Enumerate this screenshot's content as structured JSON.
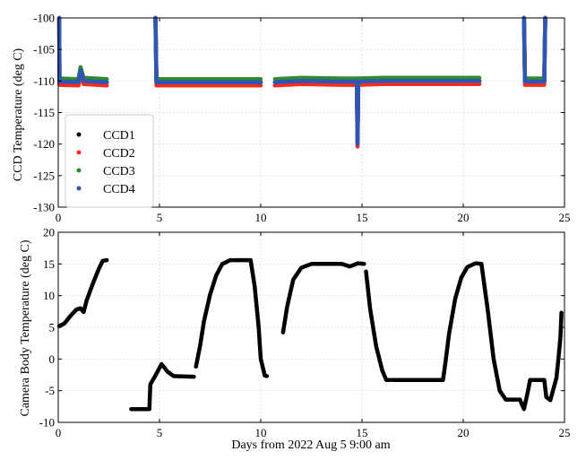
{
  "chart_data": [
    {
      "type": "scatter",
      "ylabel": "CCD Temperature (deg C)",
      "xlim": [
        0,
        25
      ],
      "ylim": [
        -130,
        -100
      ],
      "x_ticks": [
        "0",
        "5",
        "10",
        "15",
        "20",
        "25"
      ],
      "y_ticks": [
        "-100",
        "-105",
        "-110",
        "-115",
        "-120",
        "-125",
        "-130"
      ],
      "grid": true,
      "legend_position": "lower-left",
      "series": [
        {
          "name": "CCD1",
          "color": "#000000",
          "segments": [
            [
              [
                0.05,
                -100
              ],
              [
                0.06,
                -110.1
              ],
              [
                1.0,
                -110.2
              ],
              [
                1.1,
                -108.3
              ],
              [
                1.25,
                -110.0
              ],
              [
                2.4,
                -110.2
              ]
            ],
            [
              [
                4.8,
                -100
              ],
              [
                4.85,
                -110.2
              ],
              [
                10.0,
                -110.2
              ]
            ],
            [
              [
                10.7,
                -110.2
              ],
              [
                12.0,
                -110.0
              ],
              [
                14.0,
                -110.1
              ],
              [
                14.75,
                -110.1
              ],
              [
                14.78,
                -120.0
              ],
              [
                14.82,
                -110.1
              ],
              [
                16.0,
                -110.0
              ],
              [
                18.0,
                -110.0
              ],
              [
                20.8,
                -110.0
              ]
            ],
            [
              [
                23.0,
                -100
              ],
              [
                23.05,
                -110.1
              ],
              [
                24.0,
                -110.1
              ],
              [
                24.05,
                -100
              ]
            ]
          ]
        },
        {
          "name": "CCD2",
          "color": "#ff2a1a",
          "segments": [
            [
              [
                0.05,
                -100
              ],
              [
                0.06,
                -110.6
              ],
              [
                1.0,
                -110.7
              ],
              [
                1.1,
                -108.8
              ],
              [
                1.25,
                -110.5
              ],
              [
                2.4,
                -110.7
              ]
            ],
            [
              [
                4.8,
                -100
              ],
              [
                4.85,
                -110.7
              ],
              [
                10.0,
                -110.7
              ]
            ],
            [
              [
                10.7,
                -110.7
              ],
              [
                12.0,
                -110.5
              ],
              [
                14.0,
                -110.6
              ],
              [
                14.75,
                -110.6
              ],
              [
                14.78,
                -120.4
              ],
              [
                14.82,
                -110.6
              ],
              [
                16.0,
                -110.5
              ],
              [
                18.0,
                -110.5
              ],
              [
                20.8,
                -110.5
              ]
            ],
            [
              [
                23.0,
                -100
              ],
              [
                23.05,
                -110.6
              ],
              [
                24.0,
                -110.6
              ],
              [
                24.05,
                -100
              ]
            ]
          ]
        },
        {
          "name": "CCD3",
          "color": "#2e8b2e",
          "segments": [
            [
              [
                0.05,
                -100
              ],
              [
                0.06,
                -109.6
              ],
              [
                1.0,
                -109.7
              ],
              [
                1.1,
                -107.8
              ],
              [
                1.25,
                -109.5
              ],
              [
                2.4,
                -109.7
              ]
            ],
            [
              [
                4.8,
                -100
              ],
              [
                4.85,
                -109.7
              ],
              [
                10.0,
                -109.7
              ]
            ],
            [
              [
                10.7,
                -109.7
              ],
              [
                12.0,
                -109.5
              ],
              [
                14.0,
                -109.6
              ],
              [
                14.75,
                -109.6
              ],
              [
                14.78,
                -119.6
              ],
              [
                14.82,
                -109.6
              ],
              [
                16.0,
                -109.5
              ],
              [
                18.0,
                -109.5
              ],
              [
                20.8,
                -109.5
              ]
            ],
            [
              [
                23.0,
                -100
              ],
              [
                23.05,
                -109.6
              ],
              [
                24.0,
                -109.6
              ],
              [
                24.05,
                -100
              ]
            ]
          ]
        },
        {
          "name": "CCD4",
          "color": "#2f55b5",
          "segments": [
            [
              [
                0.05,
                -100
              ],
              [
                0.06,
                -110.1
              ],
              [
                1.0,
                -110.2
              ],
              [
                1.1,
                -108.3
              ],
              [
                1.25,
                -110.0
              ],
              [
                2.4,
                -110.2
              ]
            ],
            [
              [
                4.8,
                -100
              ],
              [
                4.85,
                -110.2
              ],
              [
                10.0,
                -110.2
              ]
            ],
            [
              [
                10.7,
                -110.2
              ],
              [
                12.0,
                -110.0
              ],
              [
                14.0,
                -110.1
              ],
              [
                14.75,
                -110.1
              ],
              [
                14.78,
                -120.0
              ],
              [
                14.82,
                -110.1
              ],
              [
                16.0,
                -110.0
              ],
              [
                18.0,
                -110.0
              ],
              [
                20.8,
                -110.0
              ]
            ],
            [
              [
                23.0,
                -100
              ],
              [
                23.05,
                -110.1
              ],
              [
                24.0,
                -110.1
              ],
              [
                24.05,
                -100
              ]
            ]
          ]
        }
      ]
    },
    {
      "type": "scatter",
      "xlabel": "Days from 2022 Aug 5 9:00 am",
      "ylabel": "Camera Body Temperature (deg C)",
      "xlim": [
        0,
        25
      ],
      "ylim": [
        -10,
        20
      ],
      "x_ticks": [
        "0",
        "5",
        "10",
        "15",
        "20",
        "25"
      ],
      "y_ticks": [
        "20",
        "15",
        "10",
        "5",
        "0",
        "-5",
        "-10"
      ],
      "grid": true,
      "series": [
        {
          "name": "",
          "color": "#000000",
          "segments": [
            [
              [
                0.05,
                5.2
              ],
              [
                0.3,
                5.6
              ],
              [
                0.6,
                6.8
              ],
              [
                0.9,
                7.8
              ],
              [
                1.1,
                8.0
              ],
              [
                1.25,
                7.4
              ],
              [
                1.4,
                9.2
              ],
              [
                1.7,
                11.8
              ],
              [
                2.0,
                14.2
              ],
              [
                2.2,
                15.5
              ],
              [
                2.4,
                15.6
              ]
            ],
            [
              [
                3.6,
                -7.9
              ],
              [
                4.5,
                -7.9
              ],
              [
                4.55,
                -4.0
              ],
              [
                4.8,
                -2.6
              ],
              [
                5.1,
                -0.8
              ],
              [
                5.4,
                -2.0
              ],
              [
                5.7,
                -2.7
              ],
              [
                6.7,
                -2.8
              ]
            ],
            [
              [
                6.8,
                -1.2
              ],
              [
                7.0,
                2.0
              ],
              [
                7.2,
                6.0
              ],
              [
                7.5,
                10.2
              ],
              [
                7.8,
                13.2
              ],
              [
                8.1,
                15.0
              ],
              [
                8.5,
                15.6
              ],
              [
                9.5,
                15.6
              ]
            ],
            [
              [
                9.5,
                15.6
              ],
              [
                9.7,
                11.5
              ],
              [
                9.9,
                5.0
              ],
              [
                10.0,
                0.0
              ],
              [
                10.2,
                -2.6
              ],
              [
                10.3,
                -2.7
              ]
            ],
            [
              [
                11.1,
                4.2
              ],
              [
                11.3,
                8.2
              ],
              [
                11.6,
                12.5
              ],
              [
                12.0,
                14.4
              ],
              [
                12.5,
                15.0
              ],
              [
                14.0,
                15.0
              ],
              [
                14.4,
                14.6
              ],
              [
                14.8,
                15.1
              ],
              [
                15.1,
                15.0
              ]
            ],
            [
              [
                15.2,
                13.8
              ],
              [
                15.4,
                8.0
              ],
              [
                15.7,
                2.0
              ],
              [
                16.0,
                -1.8
              ],
              [
                16.2,
                -3.3
              ],
              [
                16.4,
                -3.3
              ]
            ],
            [
              [
                16.5,
                -3.3
              ],
              [
                19.0,
                -3.3
              ],
              [
                19.1,
                -1.0
              ],
              [
                19.3,
                4.0
              ],
              [
                19.6,
                9.5
              ],
              [
                19.9,
                12.8
              ],
              [
                20.2,
                14.5
              ],
              [
                20.6,
                15.1
              ],
              [
                20.9,
                15.0
              ]
            ],
            [
              [
                20.9,
                15.0
              ],
              [
                21.2,
                8.0
              ],
              [
                21.5,
                0.0
              ],
              [
                21.8,
                -5.0
              ],
              [
                22.1,
                -6.4
              ],
              [
                22.8,
                -6.4
              ],
              [
                22.9,
                -7.2
              ],
              [
                23.0,
                -7.9
              ],
              [
                23.2,
                -5.0
              ],
              [
                23.3,
                -3.3
              ],
              [
                24.0,
                -3.3
              ],
              [
                24.1,
                -6.0
              ],
              [
                24.3,
                -6.5
              ],
              [
                24.6,
                -3.0
              ],
              [
                24.7,
                0.0
              ],
              [
                24.8,
                3.5
              ],
              [
                24.85,
                7.3
              ]
            ]
          ]
        }
      ]
    }
  ]
}
